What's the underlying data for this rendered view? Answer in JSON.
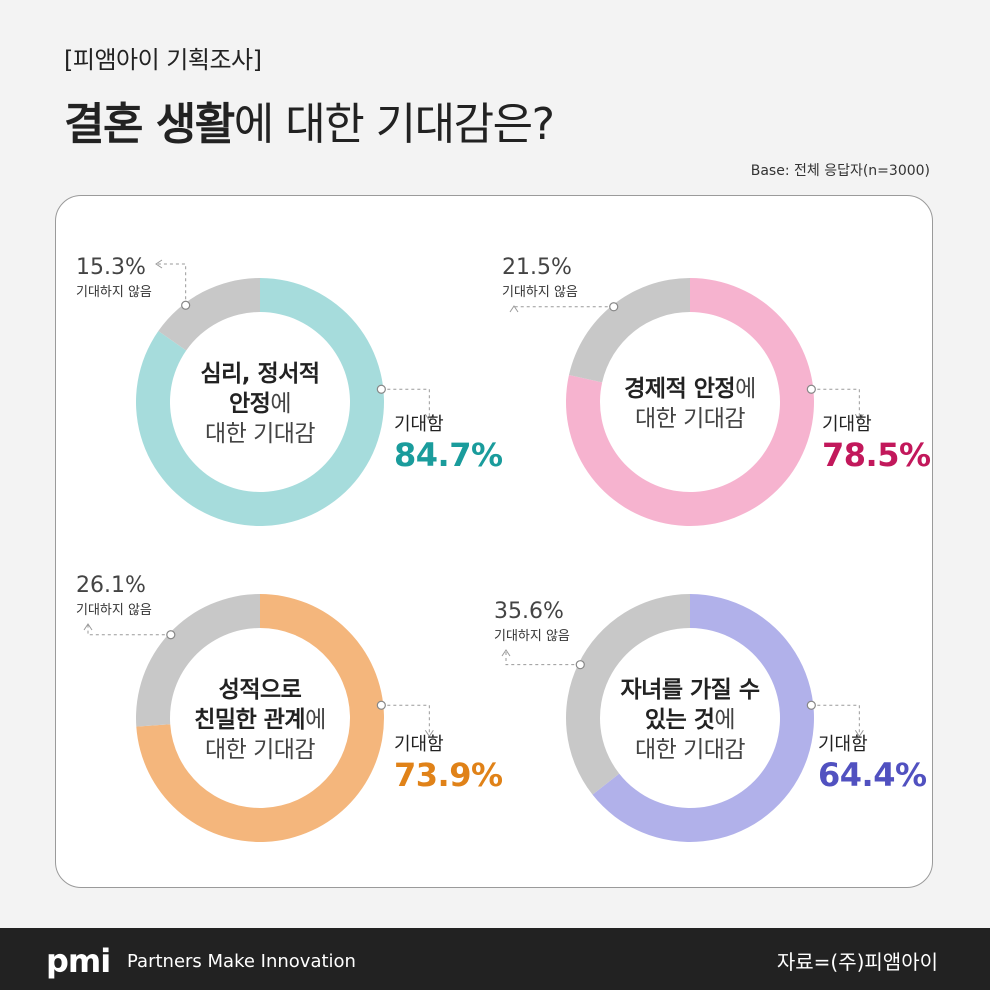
{
  "header": {
    "kicker": "[피앰아이 기획조사]",
    "title_bold": "결혼 생활",
    "title_rest": "에 대한 기대감은?",
    "base": "Base: 전체 응답자(n=3000)"
  },
  "footer": {
    "logo": "pmi",
    "tagline": "Partners Make Innovation",
    "source": "자료=(주)피앰아이"
  },
  "chart_data": [
    {
      "type": "pie",
      "donut": true,
      "center_lines": [
        [
          {
            "text": "심리, 정서적",
            "bold": true
          }
        ],
        [
          {
            "text": "안정",
            "bold": true
          },
          {
            "text": "에",
            "bold": false
          }
        ],
        [
          {
            "text": "대한 기대감",
            "bold": false
          }
        ]
      ],
      "slices": [
        {
          "label": "기대함",
          "value": 84.7,
          "value_text": "84.7%",
          "color": "#a6dcdc"
        },
        {
          "label": "기대하지 않음",
          "value": 15.3,
          "value_text": "15.3%",
          "color": "#c8c8c8"
        }
      ],
      "accent": "#1a9c9c"
    },
    {
      "type": "pie",
      "donut": true,
      "center_lines": [
        [
          {
            "text": "경제적 안정",
            "bold": true
          },
          {
            "text": "에",
            "bold": false
          }
        ],
        [
          {
            "text": "대한 기대감",
            "bold": false
          }
        ]
      ],
      "slices": [
        {
          "label": "기대함",
          "value": 78.5,
          "value_text": "78.5%",
          "color": "#f6b3cf"
        },
        {
          "label": "기대하지 않음",
          "value": 21.5,
          "value_text": "21.5%",
          "color": "#c8c8c8"
        }
      ],
      "accent": "#c2185b"
    },
    {
      "type": "pie",
      "donut": true,
      "center_lines": [
        [
          {
            "text": "성적으로",
            "bold": true
          }
        ],
        [
          {
            "text": "친밀한 관계",
            "bold": true
          },
          {
            "text": "에",
            "bold": false
          }
        ],
        [
          {
            "text": "대한 기대감",
            "bold": false
          }
        ]
      ],
      "slices": [
        {
          "label": "기대함",
          "value": 73.9,
          "value_text": "73.9%",
          "color": "#f4b67c"
        },
        {
          "label": "기대하지 않음",
          "value": 26.1,
          "value_text": "26.1%",
          "color": "#c8c8c8"
        }
      ],
      "accent": "#e08218"
    },
    {
      "type": "pie",
      "donut": true,
      "center_lines": [
        [
          {
            "text": "자녀를 가질 수",
            "bold": true
          }
        ],
        [
          {
            "text": "있는 것",
            "bold": true
          },
          {
            "text": "에",
            "bold": false
          }
        ],
        [
          {
            "text": "대한 기대감",
            "bold": false
          }
        ]
      ],
      "slices": [
        {
          "label": "기대함",
          "value": 64.4,
          "value_text": "64.4%",
          "color": "#b1b1ea"
        },
        {
          "label": "기대하지 않음",
          "value": 35.6,
          "value_text": "35.6%",
          "color": "#c8c8c8"
        }
      ],
      "accent": "#5151c0"
    }
  ]
}
